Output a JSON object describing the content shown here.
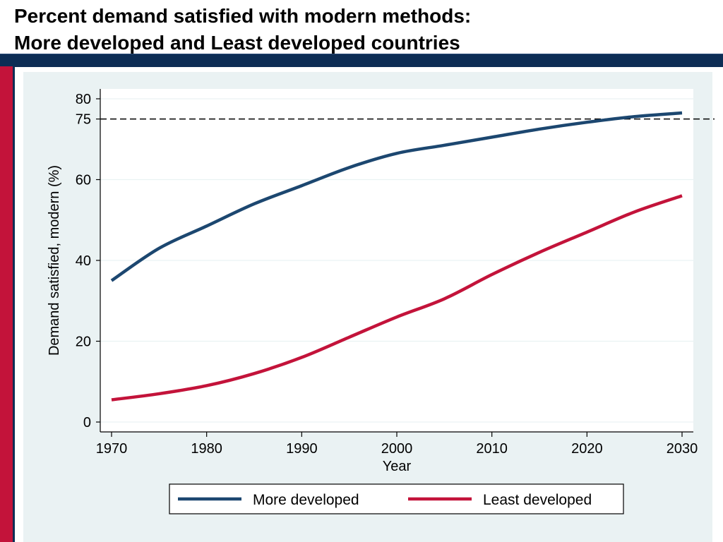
{
  "slide": {
    "title_line1": "Percent demand satisfied with modern methods:",
    "title_line2": "More developed and Least developed countries"
  },
  "colors": {
    "band_navy": "#0d2d55",
    "band_red": "#c3133a",
    "panel_bg": "#eaf2f3",
    "more_developed": "#1c4770",
    "least_developed": "#c3133a"
  },
  "chart_data": {
    "type": "line",
    "title": "",
    "xlabel": "Year",
    "ylabel": "Demand satisfied, modern (%)",
    "xlim": [
      1970,
      2030
    ],
    "ylim": [
      0,
      80
    ],
    "x_ticks": [
      1970,
      1980,
      1990,
      2000,
      2010,
      2020,
      2030
    ],
    "y_ticks": [
      0,
      20,
      40,
      60,
      75,
      80
    ],
    "grid": true,
    "reference_line": {
      "y": 75,
      "style": "dashed"
    },
    "legend_position": "bottom",
    "x": [
      1970,
      1975,
      1980,
      1985,
      1990,
      1995,
      2000,
      2005,
      2010,
      2015,
      2020,
      2025,
      2030
    ],
    "series": [
      {
        "name": "More developed",
        "color": "#1c4770",
        "values": [
          35,
          43,
          48.5,
          54,
          58.5,
          63,
          66.5,
          68.5,
          70.5,
          72.5,
          74.2,
          75.6,
          76.5
        ]
      },
      {
        "name": "Least developed",
        "color": "#c3133a",
        "values": [
          5.5,
          7,
          9,
          12,
          16,
          21,
          26,
          30.5,
          36.5,
          42,
          47,
          52,
          56
        ]
      }
    ]
  }
}
